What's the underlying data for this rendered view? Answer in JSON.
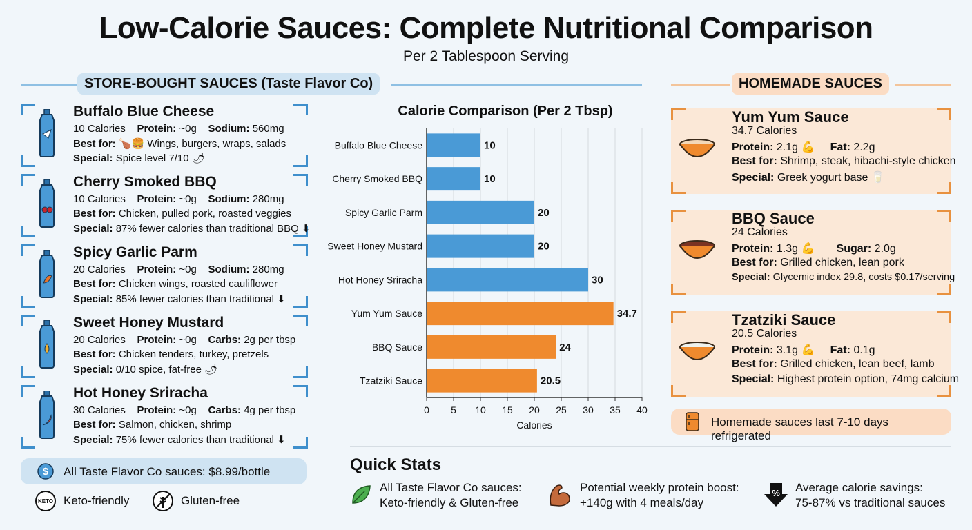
{
  "title": "Low-Calorie Sauces: Complete Nutritional Comparison",
  "subtitle": "Per 2 Tablespoon Serving",
  "store_section": {
    "label": "STORE-BOUGHT SAUCES (Taste Flavor Co)",
    "sauces": [
      {
        "name": "Buffalo Blue Cheese",
        "calories": "10 Calories",
        "stat1_label": "Protein:",
        "stat1_value": "~0g",
        "stat2_label": "Sodium:",
        "stat2_value": "560mg",
        "best_label": "Best for:",
        "best_value": "🍗🍔 Wings, burgers, wraps, salads",
        "special_label": "Special:",
        "special_value": "Spice level 7/10 🌶"
      },
      {
        "name": "Cherry Smoked BBQ",
        "calories": "10 Calories",
        "stat1_label": "Protein:",
        "stat1_value": "~0g",
        "stat2_label": "Sodium:",
        "stat2_value": "280mg",
        "best_label": "Best for:",
        "best_value": "Chicken, pulled pork, roasted veggies",
        "special_label": "Special:",
        "special_value": "87% fewer calories than traditional BBQ ⬇"
      },
      {
        "name": "Spicy Garlic Parm",
        "calories": "20 Calories",
        "stat1_label": "Protein:",
        "stat1_value": "~0g",
        "stat2_label": "Sodium:",
        "stat2_value": "280mg",
        "best_label": "Best for:",
        "best_value": "Chicken wings, roasted cauliflower",
        "special_label": "Special:",
        "special_value": "85% fewer calories than traditional ⬇"
      },
      {
        "name": "Sweet Honey Mustard",
        "calories": "20 Calories",
        "stat1_label": "Protein:",
        "stat1_value": "~0g",
        "stat2_label": "Carbs:",
        "stat2_value": "2g per tbsp",
        "best_label": "Best for:",
        "best_value": "Chicken tenders, turkey, pretzels",
        "special_label": "Special:",
        "special_value": "0/10 spice, fat-free 🌶"
      },
      {
        "name": "Hot Honey Sriracha",
        "calories": "30 Calories",
        "stat1_label": "Protein:",
        "stat1_value": "~0g",
        "stat2_label": "Carbs:",
        "stat2_value": "4g per tbsp",
        "best_label": "Best for:",
        "best_value": "Salmon, chicken, shrimp",
        "special_label": "Special:",
        "special_value": "75% fewer calories than traditional ⬇"
      }
    ],
    "price_note": "All Taste Flavor Co sauces: $8.99/bottle",
    "keto_icon_text": "KETO",
    "keto": "Keto-friendly",
    "gluten": "Gluten-free"
  },
  "home_section": {
    "label": "HOMEMADE SAUCES",
    "sauces": [
      {
        "name": "Yum Yum Sauce",
        "calories": "34.7 Calories",
        "stat1_label": "Protein:",
        "stat1_value": "2.1g 💪",
        "stat2_label": "Fat:",
        "stat2_value": "2.2g",
        "best_label": "Best for:",
        "best_value": "Shrimp, steak, hibachi-style chicken",
        "special_label": "Special:",
        "special_value": "Greek yogurt base 🥛"
      },
      {
        "name": "BBQ Sauce",
        "calories": "24 Calories",
        "stat1_label": "Protein:",
        "stat1_value": "1.3g 💪",
        "stat2_label": "Sugar:",
        "stat2_value": "2.0g",
        "best_label": "Best for:",
        "best_value": "Grilled chicken, lean pork",
        "special_label": "Special:",
        "special_value": "Glycemic index 29.8, costs $0.17/serving"
      },
      {
        "name": "Tzatziki Sauce",
        "calories": "20.5 Calories",
        "stat1_label": "Protein:",
        "stat1_value": "3.1g 💪",
        "stat2_label": "Fat:",
        "stat2_value": "0.1g",
        "best_label": "Best for:",
        "best_value": "Grilled chicken, lean beef, lamb",
        "special_label": "Special:",
        "special_value": "Highest protein option, 74mg calcium"
      }
    ],
    "storage_note": "Homemade sauces last 7-10 days refrigerated"
  },
  "chart_data": {
    "type": "bar",
    "orientation": "horizontal",
    "title": "Calorie Comparison (Per 2 Tbsp)",
    "xlabel": "Calories",
    "ylabel": "",
    "categories": [
      "Buffalo Blue Cheese",
      "Cherry Smoked BBQ",
      "Spicy Garlic Parm",
      "Sweet Honey Mustard",
      "Hot Honey Sriracha",
      "Yum Yum Sauce",
      "BBQ Sauce",
      "Tzatziki Sauce"
    ],
    "values": [
      10,
      10,
      20,
      20,
      30,
      34.7,
      24,
      20.5
    ],
    "value_labels": [
      "10",
      "10",
      "20",
      "20",
      "30",
      "34.7",
      "24",
      "20.5"
    ],
    "bar_colors": [
      "#4a9ad6",
      "#4a9ad6",
      "#4a9ad6",
      "#4a9ad6",
      "#4a9ad6",
      "#ef8a2e",
      "#ef8a2e",
      "#ef8a2e"
    ],
    "xlim": [
      0,
      40
    ],
    "xticks": [
      0,
      5,
      10,
      15,
      20,
      25,
      30,
      35,
      40
    ],
    "grid": true
  },
  "quick_stats": {
    "title": "Quick Stats",
    "items": [
      {
        "icon": "leaf-icon",
        "line1": "All Taste Flavor Co sauces:",
        "line2": "Keto-friendly & Gluten-free"
      },
      {
        "icon": "muscle-icon",
        "line1": "Potential weekly protein boost:",
        "line2": "+140g with 4 meals/day"
      },
      {
        "icon": "percent-down-icon",
        "line1": "Average calorie savings:",
        "line2": "75-87% vs traditional sauces"
      }
    ]
  },
  "colors": {
    "store_accent": "#3f8fcc",
    "home_accent": "#e8913f",
    "store_bar": "#4a9ad6",
    "home_bar": "#ef8a2e"
  }
}
